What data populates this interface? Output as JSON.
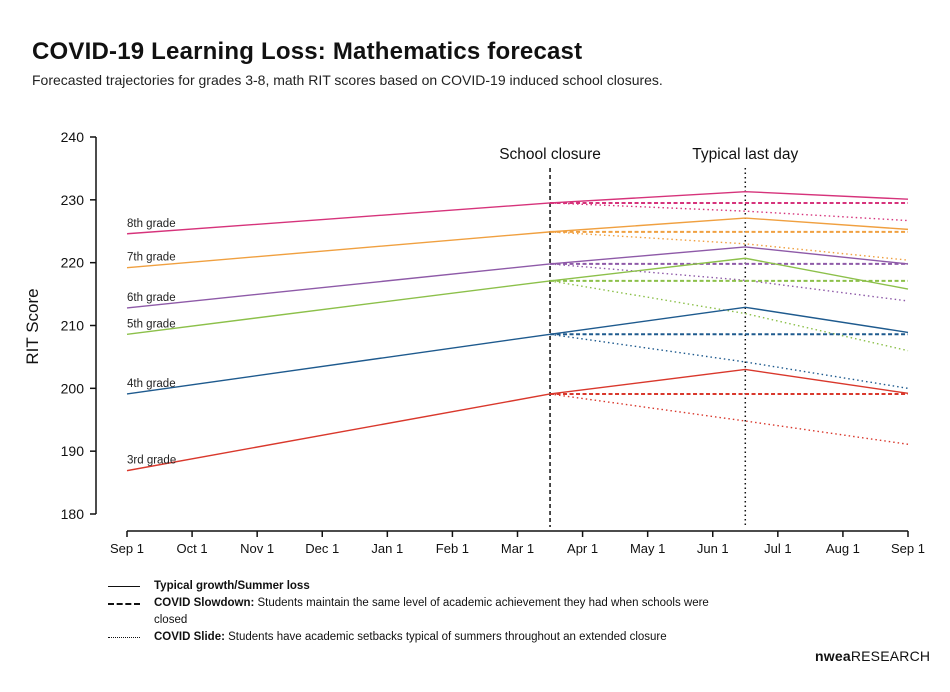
{
  "title": "COVID-19 Learning Loss: Mathematics forecast",
  "subtitle": "Forecasted trajectories for grades 3-8, math RIT scores based on COVID-19 induced school closures.",
  "brand": {
    "part1": "nwea",
    "part2": "RESEARCH"
  },
  "legend": [
    {
      "style": "solid",
      "label": "Typical growth/Summer loss",
      "desc": ""
    },
    {
      "style": "dashed",
      "label": "COVID Slowdown:",
      "desc": " Students maintain the same level of academic achievement they had when schools were closed"
    },
    {
      "style": "dotted",
      "label": "COVID Slide:",
      "desc": " Students have academic setbacks typical of summers throughout an extended closure"
    }
  ],
  "chart_data": {
    "type": "line",
    "title": "COVID-19 Learning Loss: Mathematics forecast",
    "ylabel": "RIT Score",
    "xlabel": "",
    "ylim": [
      180,
      240
    ],
    "yticks": [
      180,
      190,
      200,
      210,
      220,
      230,
      240
    ],
    "xticks": [
      "Sep 1",
      "Oct 1",
      "Nov 1",
      "Dec 1",
      "Jan 1",
      "Feb 1",
      "Mar 1",
      "Apr 1",
      "May 1",
      "Jun 1",
      "Jul 1",
      "Aug 1",
      "Sep 1"
    ],
    "x_index": {
      "start": 0,
      "closure": 6.5,
      "last_day": 9.5,
      "end": 12
    },
    "annotations": [
      {
        "text": "School closure",
        "x": 6.5,
        "style": "dashed"
      },
      {
        "text": "Typical last day",
        "x": 9.5,
        "style": "dotted"
      }
    ],
    "grid": false,
    "series": [
      {
        "name": "8th grade",
        "color": "#d6337b",
        "start": 224.6,
        "closure": 229.5,
        "last_day": 231.3,
        "end": 230.1,
        "slide_last_day": 228.2,
        "slide_end": 226.7
      },
      {
        "name": "7th grade",
        "color": "#f0a040",
        "start": 219.2,
        "closure": 224.9,
        "last_day": 227.1,
        "end": 225.3,
        "slide_last_day": 223.0,
        "slide_end": 220.4
      },
      {
        "name": "6th grade",
        "color": "#8e5aa8",
        "start": 212.8,
        "closure": 219.8,
        "last_day": 222.5,
        "end": 219.8,
        "slide_last_day": 217.2,
        "slide_end": 213.9
      },
      {
        "name": "5th grade",
        "color": "#8cc04a",
        "start": 208.6,
        "closure": 217.1,
        "last_day": 220.7,
        "end": 215.8,
        "slide_last_day": 211.9,
        "slide_end": 206.0
      },
      {
        "name": "4th grade",
        "color": "#1e5a8e",
        "start": 199.1,
        "closure": 208.6,
        "last_day": 212.9,
        "end": 208.9,
        "slide_last_day": 204.2,
        "slide_end": 200.0
      },
      {
        "name": "3rd grade",
        "color": "#d9382c",
        "start": 186.9,
        "closure": 199.1,
        "last_day": 203.0,
        "end": 199.2,
        "slide_last_day": 194.8,
        "slide_end": 191.1
      }
    ]
  }
}
